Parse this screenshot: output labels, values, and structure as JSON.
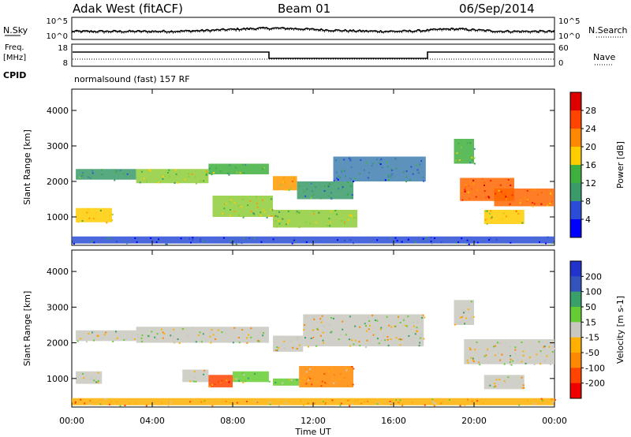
{
  "header": {
    "station": "Adak West (fitACF)",
    "beam": "Beam 01",
    "date": "06/Sep/2014"
  },
  "sky_panel": {
    "left_label": "N.Sky",
    "left_ticks": [
      "10^5",
      "10^0"
    ],
    "right_ticks": [
      "10^5",
      "10^0"
    ],
    "right_label": "N.Search"
  },
  "freq_panel": {
    "left_label_top": "Freq.",
    "left_label_unit": "[MHz]",
    "left_ticks": [
      "18",
      "8"
    ],
    "right_ticks": [
      "60",
      "0"
    ],
    "right_label": "Nave",
    "cpid_label": "CPID",
    "cpid_text": "normalsound (fast) 157 RF"
  },
  "colors": {
    "power": [
      "#0000ff",
      "#2a4cd6",
      "#3f7fb0",
      "#3a9a6a",
      "#3fb03f",
      "#8fcc3a",
      "#ffcc00",
      "#ff9900",
      "#ff6600",
      "#ff2200",
      "#dd0000"
    ],
    "velocity": [
      "#2233cc",
      "#3355bb",
      "#3aa06a",
      "#66cc33",
      "#c8c8c0",
      "#ffb000",
      "#ff8800",
      "#ff4400",
      "#ee0000"
    ]
  },
  "chart_data": [
    {
      "type": "heatmap",
      "name": "power",
      "ylabel": "Slant Range [km]",
      "ylim": [
        200,
        4600
      ],
      "yticks": [
        "1000",
        "2000",
        "3000",
        "4000"
      ],
      "colorbar_label": "Power [dB]",
      "colorbar_ticks": [
        "28",
        "24",
        "20",
        "16",
        "12",
        "8",
        "4"
      ],
      "bands": [
        {
          "t": [
            0.2,
            2.0
          ],
          "r": [
            850,
            1250
          ],
          "level": 6
        },
        {
          "t": [
            0.2,
            3.2
          ],
          "r": [
            2050,
            2350
          ],
          "level": 3
        },
        {
          "t": [
            3.2,
            6.8
          ],
          "r": [
            1950,
            2350
          ],
          "level": 5
        },
        {
          "t": [
            6.8,
            9.8
          ],
          "r": [
            2200,
            2500
          ],
          "level": 4
        },
        {
          "t": [
            7.0,
            10.0
          ],
          "r": [
            1000,
            1600
          ],
          "level": 5
        },
        {
          "t": [
            10.0,
            11.2
          ],
          "r": [
            1750,
            2150
          ],
          "level": 7
        },
        {
          "t": [
            11.2,
            14.0
          ],
          "r": [
            1500,
            2000
          ],
          "level": 3
        },
        {
          "t": [
            10.0,
            14.2
          ],
          "r": [
            700,
            1200
          ],
          "level": 5
        },
        {
          "t": [
            13.0,
            17.6
          ],
          "r": [
            2000,
            2700
          ],
          "level": 2
        },
        {
          "t": [
            19.3,
            22.0
          ],
          "r": [
            1450,
            2100
          ],
          "level": 8
        },
        {
          "t": [
            21.0,
            24.0
          ],
          "r": [
            1300,
            1800
          ],
          "level": 8
        },
        {
          "t": [
            20.5,
            22.5
          ],
          "r": [
            800,
            1200
          ],
          "level": 6
        },
        {
          "t": [
            19.0,
            20.0
          ],
          "r": [
            2500,
            3200
          ],
          "level": 4
        },
        {
          "t": [
            0.0,
            24.0
          ],
          "r": [
            250,
            450
          ],
          "level": 1
        }
      ]
    },
    {
      "type": "heatmap",
      "name": "velocity",
      "ylabel": "Slant Range [km]",
      "ylim": [
        200,
        4600
      ],
      "yticks": [
        "1000",
        "2000",
        "3000",
        "4000"
      ],
      "colorbar_label": "Velocity [m s-1]",
      "colorbar_ticks": [
        "200",
        "100",
        "50",
        "15",
        "-15",
        "-50",
        "-100",
        "-200"
      ],
      "xlabel": "Time UT",
      "xticks": [
        "00:00",
        "04:00",
        "08:00",
        "12:00",
        "16:00",
        "20:00",
        "00:00"
      ],
      "bands": [
        {
          "t": [
            0.2,
            3.2
          ],
          "r": [
            2050,
            2350
          ],
          "level": 4
        },
        {
          "t": [
            3.2,
            9.8
          ],
          "r": [
            2000,
            2450
          ],
          "level": 4
        },
        {
          "t": [
            0.2,
            1.5
          ],
          "r": [
            850,
            1200
          ],
          "level": 4
        },
        {
          "t": [
            5.5,
            6.8
          ],
          "r": [
            900,
            1250
          ],
          "level": 4
        },
        {
          "t": [
            6.8,
            8.0
          ],
          "r": [
            750,
            1100
          ],
          "level": 7
        },
        {
          "t": [
            8.0,
            9.8
          ],
          "r": [
            900,
            1200
          ],
          "level": 3
        },
        {
          "t": [
            10.0,
            11.3
          ],
          "r": [
            800,
            1000
          ],
          "level": 3
        },
        {
          "t": [
            11.3,
            14.0
          ],
          "r": [
            750,
            1350
          ],
          "level": 6
        },
        {
          "t": [
            10.0,
            11.5
          ],
          "r": [
            1750,
            2200
          ],
          "level": 4
        },
        {
          "t": [
            11.5,
            17.5
          ],
          "r": [
            1900,
            2800
          ],
          "level": 4
        },
        {
          "t": [
            19.5,
            24.0
          ],
          "r": [
            1400,
            2100
          ],
          "level": 4
        },
        {
          "t": [
            20.5,
            22.5
          ],
          "r": [
            700,
            1100
          ],
          "level": 4
        },
        {
          "t": [
            19.0,
            20.0
          ],
          "r": [
            2500,
            3200
          ],
          "level": 4
        },
        {
          "t": [
            0.0,
            24.0
          ],
          "r": [
            250,
            450
          ],
          "level": 5
        }
      ]
    }
  ]
}
